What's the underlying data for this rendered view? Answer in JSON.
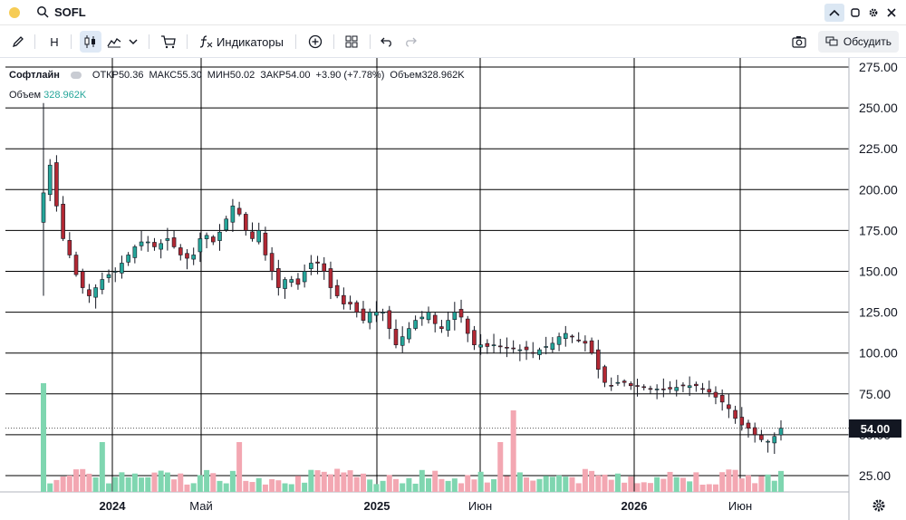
{
  "titlebar": {
    "symbol": "SOFL"
  },
  "toolbar": {
    "interval": "H",
    "indicators_label": "Индикаторы",
    "discuss_label": "Обсудить"
  },
  "legend": {
    "name": "Софтлайн",
    "open_label": "ОТКР",
    "open": "50.36",
    "high_label": "МАКС",
    "high": "55.30",
    "low_label": "МИН",
    "low": "50.02",
    "close_label": "ЗАКР",
    "close": "54.00",
    "change": "+3.90 (+7.78%)",
    "volume_label": "Объем",
    "volume": "328.962K"
  },
  "volume_legend": {
    "label": "Объем",
    "value": "328.962K"
  },
  "last_price": "54.00",
  "colors": {
    "up": "#26a69a",
    "down": "#b22833",
    "vol_up": "#7fd6b0",
    "vol_down": "#f3a7b2",
    "grid": "#000000"
  },
  "chart_data": {
    "type": "candlestick",
    "y_ticks": [
      "275.00",
      "250.00",
      "225.00",
      "200.00",
      "175.00",
      "150.00",
      "125.00",
      "100.00",
      "75.00",
      "50.00",
      "25.00"
    ],
    "x_ticks": [
      "2024",
      "Май",
      "2025",
      "Июн",
      "2026",
      "Июн"
    ],
    "ylim": [
      20,
      280
    ],
    "close": [
      198,
      215,
      190,
      170,
      160,
      148,
      140,
      135,
      140,
      145,
      148,
      150,
      155,
      160,
      165,
      168,
      168,
      165,
      167,
      170,
      165,
      160,
      158,
      160,
      170,
      172,
      168,
      174,
      182,
      190,
      185,
      175,
      170,
      175,
      160,
      150,
      140,
      145,
      145,
      142,
      150,
      155,
      155,
      150,
      140,
      135,
      130,
      130,
      125,
      120,
      125,
      125,
      125,
      115,
      105,
      110,
      115,
      120,
      122,
      125,
      118,
      115,
      120,
      125,
      122,
      112,
      105,
      105,
      104,
      105,
      104,
      103,
      103,
      102,
      102,
      100,
      102,
      104,
      106,
      110,
      112,
      110,
      108,
      106,
      100,
      90,
      82,
      80,
      82,
      82,
      80,
      80,
      79,
      78,
      78,
      78,
      78,
      79,
      80,
      80,
      80,
      78,
      76,
      73,
      70,
      66,
      60,
      56,
      54,
      50,
      47,
      46,
      49,
      54
    ],
    "volume_scale": "relative"
  }
}
